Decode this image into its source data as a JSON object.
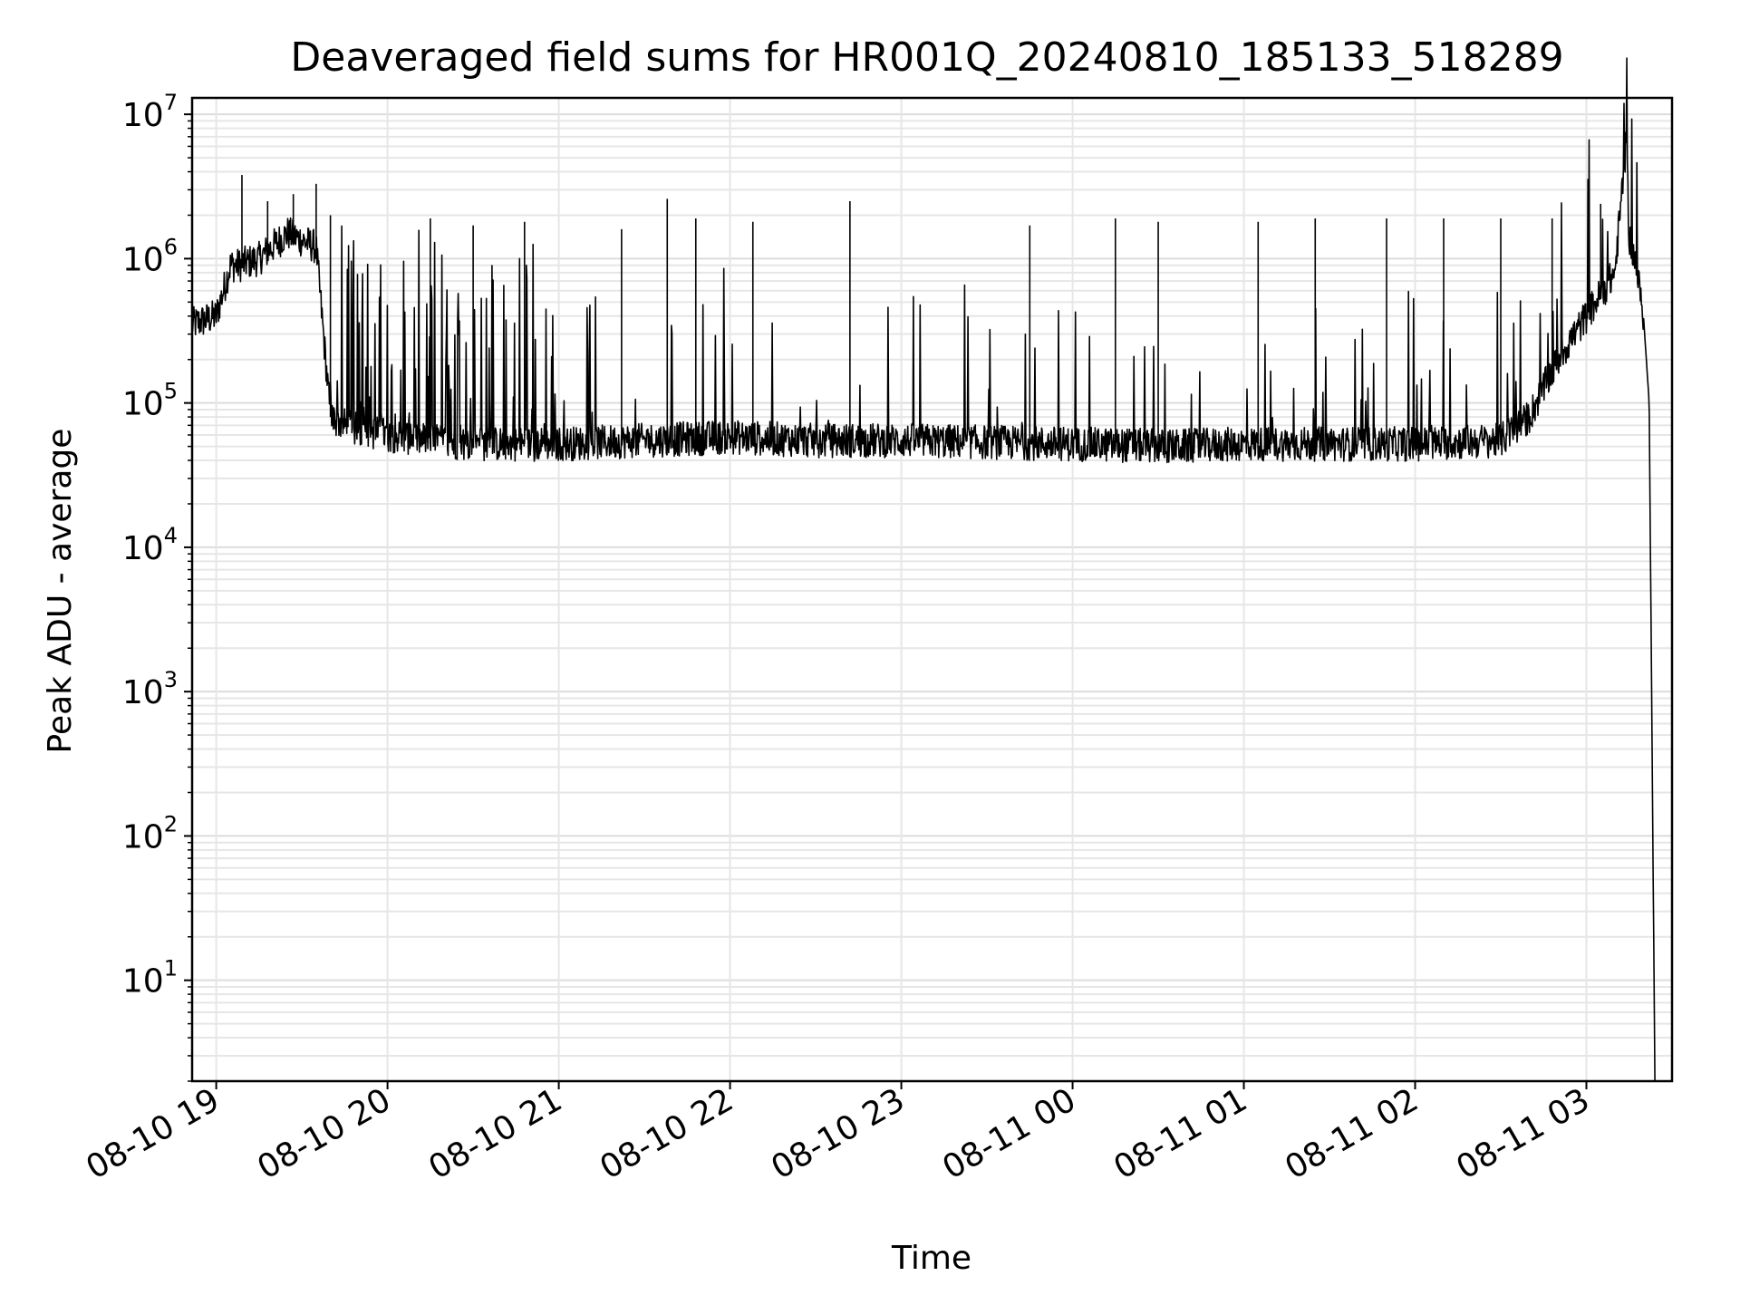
{
  "chart_data": {
    "type": "line",
    "title": "Deaveraged field sums for HR001Q_20240810_185133_518289",
    "xlabel": "Time",
    "ylabel": "Peak ADU - average",
    "yscale": "log",
    "xlim": [
      "2024-08-10 18:51:33",
      "2024-08-11 03:30:00"
    ],
    "ylim": [
      2,
      13000000
    ],
    "grid": true,
    "grid_minor": true,
    "x_ticks": [
      "08-10 19",
      "08-10 20",
      "08-10 21",
      "08-10 22",
      "08-10 23",
      "08-11 00",
      "08-11 01",
      "08-11 02",
      "08-11 03"
    ],
    "y_ticks": [
      {
        "value": 10,
        "base": "10",
        "exp": "1"
      },
      {
        "value": 100,
        "base": "10",
        "exp": "2"
      },
      {
        "value": 1000,
        "base": "10",
        "exp": "3"
      },
      {
        "value": 10000,
        "base": "10",
        "exp": "4"
      },
      {
        "value": 100000,
        "base": "10",
        "exp": "5"
      },
      {
        "value": 1000000,
        "base": "10",
        "exp": "6"
      },
      {
        "value": 10000000,
        "base": "10",
        "exp": "7"
      }
    ],
    "series": [
      {
        "color": "#000000",
        "x": [
          "2024-08-10 18:51:33",
          "2024-08-10 19:00",
          "2024-08-10 19:05",
          "2024-08-10 19:08",
          "2024-08-10 19:15",
          "2024-08-10 19:25",
          "2024-08-10 19:35",
          "2024-08-10 19:40",
          "2024-08-10 19:45",
          "2024-08-10 19:50",
          "2024-08-10 20:00",
          "2024-08-10 20:15",
          "2024-08-10 20:30",
          "2024-08-10 21:00",
          "2024-08-10 21:30",
          "2024-08-10 22:00",
          "2024-08-10 22:30",
          "2024-08-10 23:00",
          "2024-08-11 00:00",
          "2024-08-11 00:35",
          "2024-08-11 01:00",
          "2024-08-11 02:00",
          "2024-08-11 02:30",
          "2024-08-11 02:40",
          "2024-08-11 02:50",
          "2024-08-11 03:00",
          "2024-08-11 03:10",
          "2024-08-11 03:14",
          "2024-08-11 03:15",
          "2024-08-11 03:17",
          "2024-08-11 03:20",
          "2024-08-11 03:22",
          "2024-08-11 03:24"
        ],
        "y": [
          350000,
          400000,
          900000,
          900000,
          1000000,
          1500000,
          1200000,
          80000,
          70000,
          65000,
          60000,
          55000,
          52000,
          52000,
          55000,
          58000,
          55000,
          55000,
          52000,
          50000,
          52000,
          52000,
          55000,
          80000,
          200000,
          400000,
          800000,
          6500000,
          1400000,
          1000000,
          400000,
          100000,
          2
        ],
        "spikes": {
          "x": [
            "2024-08-10 19:09",
            "2024-08-10 19:18",
            "2024-08-10 19:27",
            "2024-08-10 19:35",
            "2024-08-10 19:40",
            "2024-08-10 20:15",
            "2024-08-10 20:30",
            "2024-08-10 20:48",
            "2024-08-10 21:22",
            "2024-08-10 21:38",
            "2024-08-10 21:48",
            "2024-08-10 22:08",
            "2024-08-10 22:42",
            "2024-08-10 23:45",
            "2024-08-11 00:15",
            "2024-08-11 00:30",
            "2024-08-11 01:05",
            "2024-08-11 01:25",
            "2024-08-11 01:50",
            "2024-08-11 02:10",
            "2024-08-11 02:30",
            "2024-08-11 02:48",
            "2024-08-11 03:05"
          ],
          "y": [
            3800000,
            2500000,
            2800000,
            3300000,
            2000000,
            1900000,
            1700000,
            1800000,
            1600000,
            2600000,
            1900000,
            1800000,
            2500000,
            1700000,
            1900000,
            1800000,
            1800000,
            1900000,
            1900000,
            1900000,
            1900000,
            1900000,
            2400000
          ]
        }
      }
    ]
  }
}
